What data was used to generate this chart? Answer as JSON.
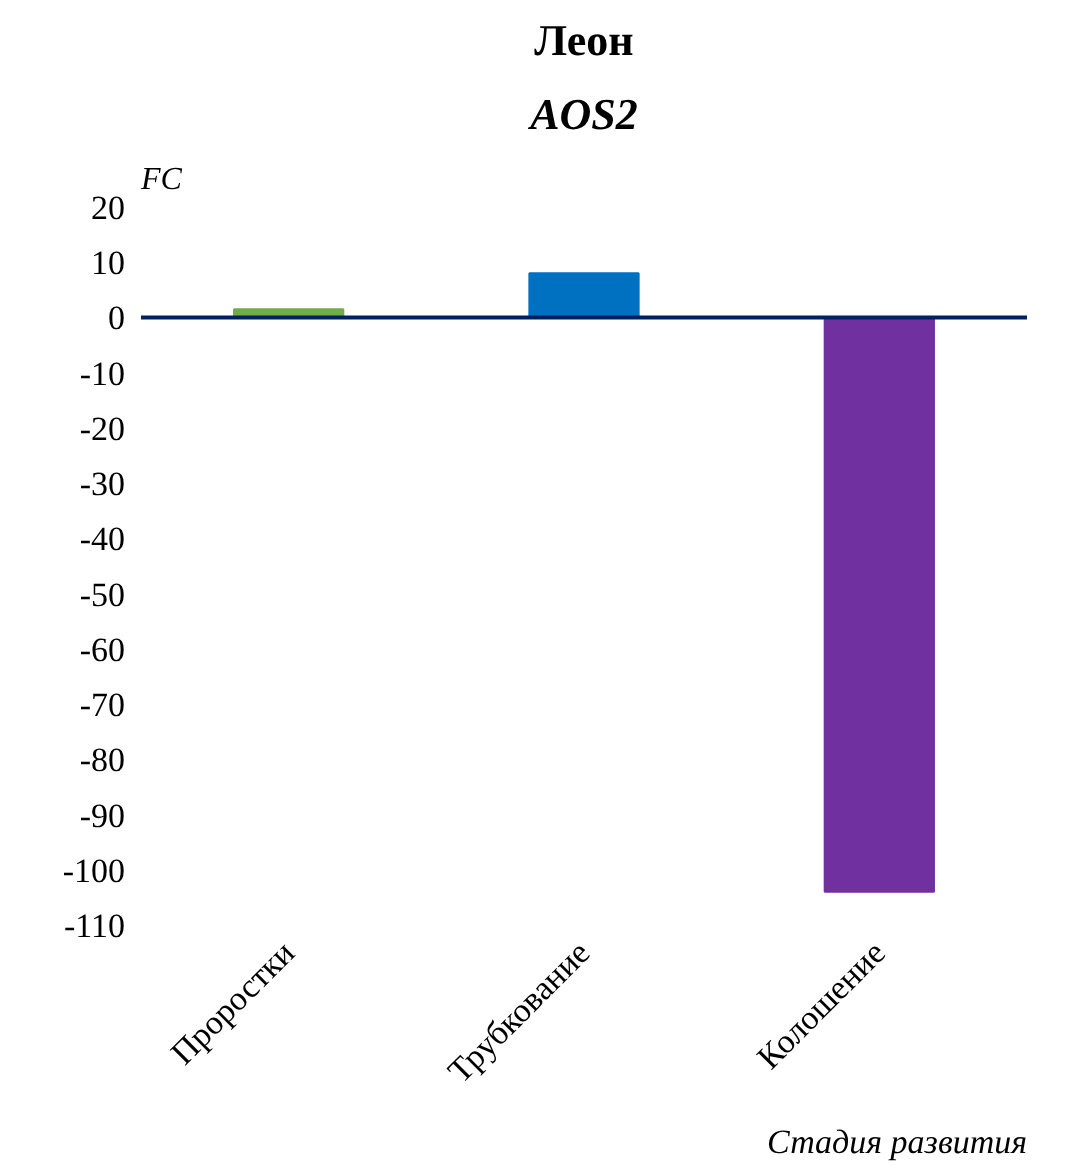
{
  "chart_data": {
    "type": "bar",
    "title": "Леон",
    "subtitle": "AOS2",
    "ylabel": "FC",
    "xlabel": "Стадия развития",
    "categories": [
      "Проростки",
      "Трубкование",
      "Колошение"
    ],
    "values": [
      1.5,
      8,
      -104
    ],
    "colors": [
      "#70ad47",
      "#0070c0",
      "#7030a0"
    ],
    "ylim": [
      -110,
      20
    ],
    "yticks": [
      20,
      10,
      0,
      -10,
      -20,
      -30,
      -40,
      -50,
      -60,
      -70,
      -80,
      -90,
      -100,
      -110
    ],
    "grid": false
  }
}
